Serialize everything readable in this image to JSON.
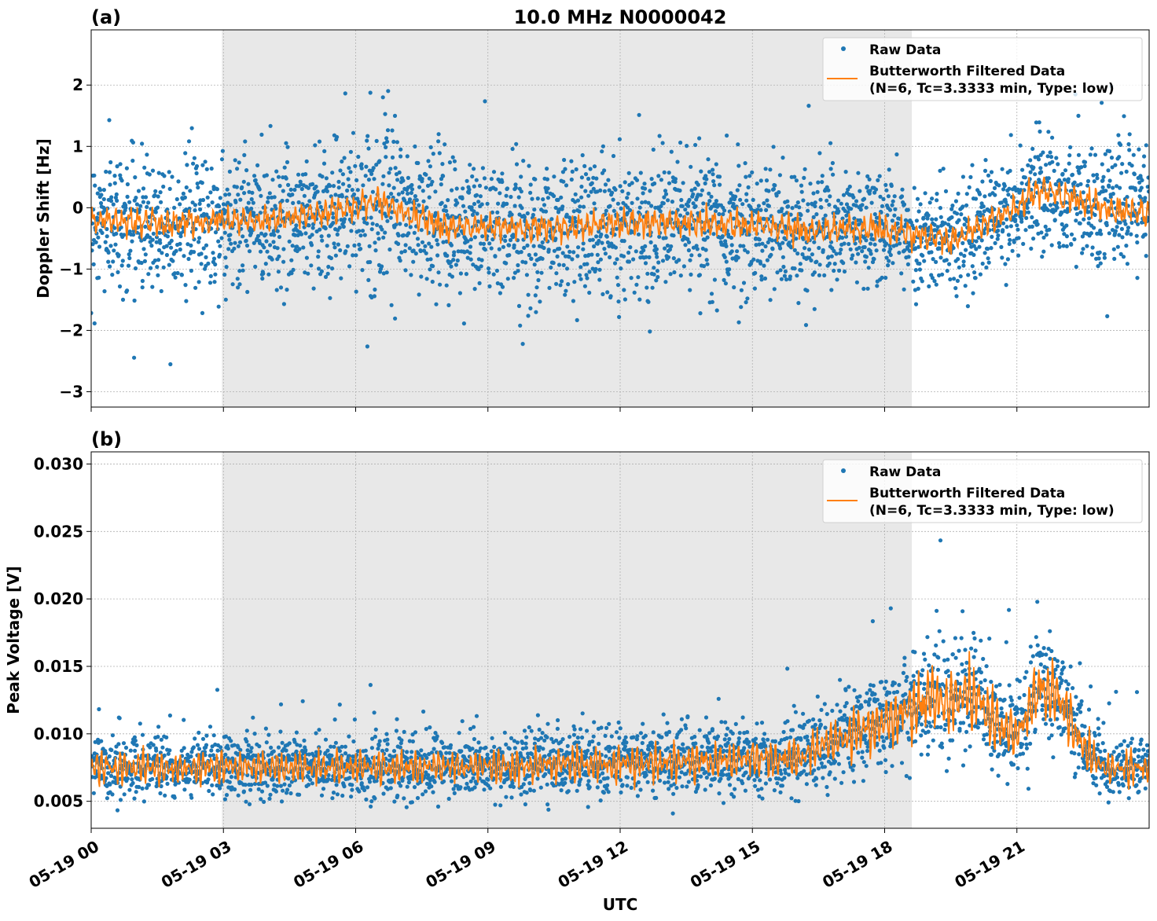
{
  "chart_data": [
    {
      "type": "scatter",
      "panel_label": "(a)",
      "title": "10.0 MHz N0000042",
      "xlabel": "",
      "ylabel": "Doppler Shift [Hz]",
      "xlim": [
        "05-19 00:00",
        "05-20 00:00"
      ],
      "ylim": [
        -3.25,
        2.9
      ],
      "x_tick_labels": [
        "05-19 00",
        "05-19 03",
        "05-19 06",
        "05-19 09",
        "05-19 12",
        "05-19 15",
        "05-19 18",
        "05-19 21"
      ],
      "y_ticks": [
        -3,
        -2,
        -1,
        0,
        1,
        2
      ],
      "y_tick_labels": [
        "−3",
        "−2",
        "−1",
        "0",
        "1",
        "2"
      ],
      "grid": true,
      "legend": "top-right",
      "shaded_interval": [
        "05-19 02:58",
        "05-19 18:37"
      ],
      "series": [
        {
          "name": "Raw Data",
          "style": "points",
          "color": "#1f77b4",
          "x": [
            "05-19 00:00",
            "05-19 02:00",
            "05-19 04:00",
            "05-19 06:00",
            "05-19 06:30",
            "05-19 08:00",
            "05-19 10:00",
            "05-19 12:00",
            "05-19 14:00",
            "05-19 16:00",
            "05-19 18:00",
            "05-19 19:30",
            "05-19 21:00",
            "05-19 21:30",
            "05-19 23:00",
            "05-20 00:00"
          ],
          "mean": [
            -0.2,
            -0.25,
            -0.2,
            0.0,
            0.1,
            -0.3,
            -0.35,
            -0.25,
            -0.25,
            -0.35,
            -0.35,
            -0.55,
            0.0,
            0.3,
            0.0,
            -0.1
          ],
          "spread": [
            0.55,
            0.55,
            0.55,
            0.6,
            0.6,
            0.6,
            0.6,
            0.55,
            0.55,
            0.55,
            0.45,
            0.4,
            0.45,
            0.5,
            0.55,
            0.55
          ]
        },
        {
          "name": "Butterworth Filtered Data\n(N=6, Tc=3.3333 min, Type: low)",
          "legend_lines": [
            "Butterworth Filtered Data",
            "(N=6, Tc=3.3333 min, Type: low)"
          ],
          "style": "line",
          "color": "#ff7f0e",
          "x": [
            "05-19 00:00",
            "05-19 02:00",
            "05-19 04:00",
            "05-19 06:00",
            "05-19 06:30",
            "05-19 08:00",
            "05-19 10:00",
            "05-19 12:00",
            "05-19 14:00",
            "05-19 16:00",
            "05-19 18:00",
            "05-19 19:30",
            "05-19 21:00",
            "05-19 21:30",
            "05-19 23:00",
            "05-20 00:00"
          ],
          "y": [
            -0.2,
            -0.25,
            -0.2,
            0.0,
            0.1,
            -0.3,
            -0.35,
            -0.25,
            -0.25,
            -0.35,
            -0.35,
            -0.55,
            0.0,
            0.3,
            0.0,
            -0.1
          ]
        }
      ]
    },
    {
      "type": "scatter",
      "panel_label": "(b)",
      "title": "",
      "xlabel": "UTC",
      "ylabel": "Peak Voltage [V]",
      "xlim": [
        "05-19 00:00",
        "05-20 00:00"
      ],
      "ylim": [
        0.003,
        0.0309
      ],
      "x_tick_labels": [
        "05-19 00",
        "05-19 03",
        "05-19 06",
        "05-19 09",
        "05-19 12",
        "05-19 15",
        "05-19 18",
        "05-19 21"
      ],
      "y_ticks": [
        0.005,
        0.01,
        0.015,
        0.02,
        0.025,
        0.03
      ],
      "y_tick_labels": [
        "0.005",
        "0.010",
        "0.015",
        "0.020",
        "0.025",
        "0.030"
      ],
      "grid": true,
      "legend": "top-right",
      "shaded_interval": [
        "05-19 02:58",
        "05-19 18:37"
      ],
      "series": [
        {
          "name": "Raw Data",
          "style": "points",
          "color": "#1f77b4",
          "x": [
            "05-19 00:00",
            "05-19 04:00",
            "05-19 08:00",
            "05-19 12:00",
            "05-19 16:00",
            "05-19 17:00",
            "05-19 18:00",
            "05-19 19:00",
            "05-19 20:00",
            "05-19 20:30",
            "05-19 21:00",
            "05-19 21:30",
            "05-19 22:00",
            "05-19 22:30",
            "05-19 23:00",
            "05-20 00:00"
          ],
          "mean": [
            0.0075,
            0.0075,
            0.0075,
            0.0078,
            0.0082,
            0.0095,
            0.011,
            0.0125,
            0.0128,
            0.011,
            0.0098,
            0.0135,
            0.0125,
            0.009,
            0.0075,
            0.0075
          ],
          "spread": [
            0.0013,
            0.0013,
            0.0013,
            0.0014,
            0.0016,
            0.0018,
            0.0022,
            0.0026,
            0.0028,
            0.0024,
            0.002,
            0.0028,
            0.0026,
            0.0017,
            0.0013,
            0.0013
          ]
        },
        {
          "name": "Butterworth Filtered Data\n(N=6, Tc=3.3333 min, Type: low)",
          "legend_lines": [
            "Butterworth Filtered Data",
            "(N=6, Tc=3.3333 min, Type: low)"
          ],
          "style": "line",
          "color": "#ff7f0e",
          "x": [
            "05-19 00:00",
            "05-19 04:00",
            "05-19 08:00",
            "05-19 12:00",
            "05-19 16:00",
            "05-19 17:00",
            "05-19 18:00",
            "05-19 19:00",
            "05-19 20:00",
            "05-19 20:30",
            "05-19 21:00",
            "05-19 21:30",
            "05-19 22:00",
            "05-19 22:30",
            "05-19 23:00",
            "05-20 00:00"
          ],
          "y": [
            0.0075,
            0.0075,
            0.0075,
            0.0078,
            0.0082,
            0.0095,
            0.011,
            0.0125,
            0.0128,
            0.011,
            0.0098,
            0.0135,
            0.0125,
            0.009,
            0.0075,
            0.0075
          ]
        }
      ]
    }
  ]
}
